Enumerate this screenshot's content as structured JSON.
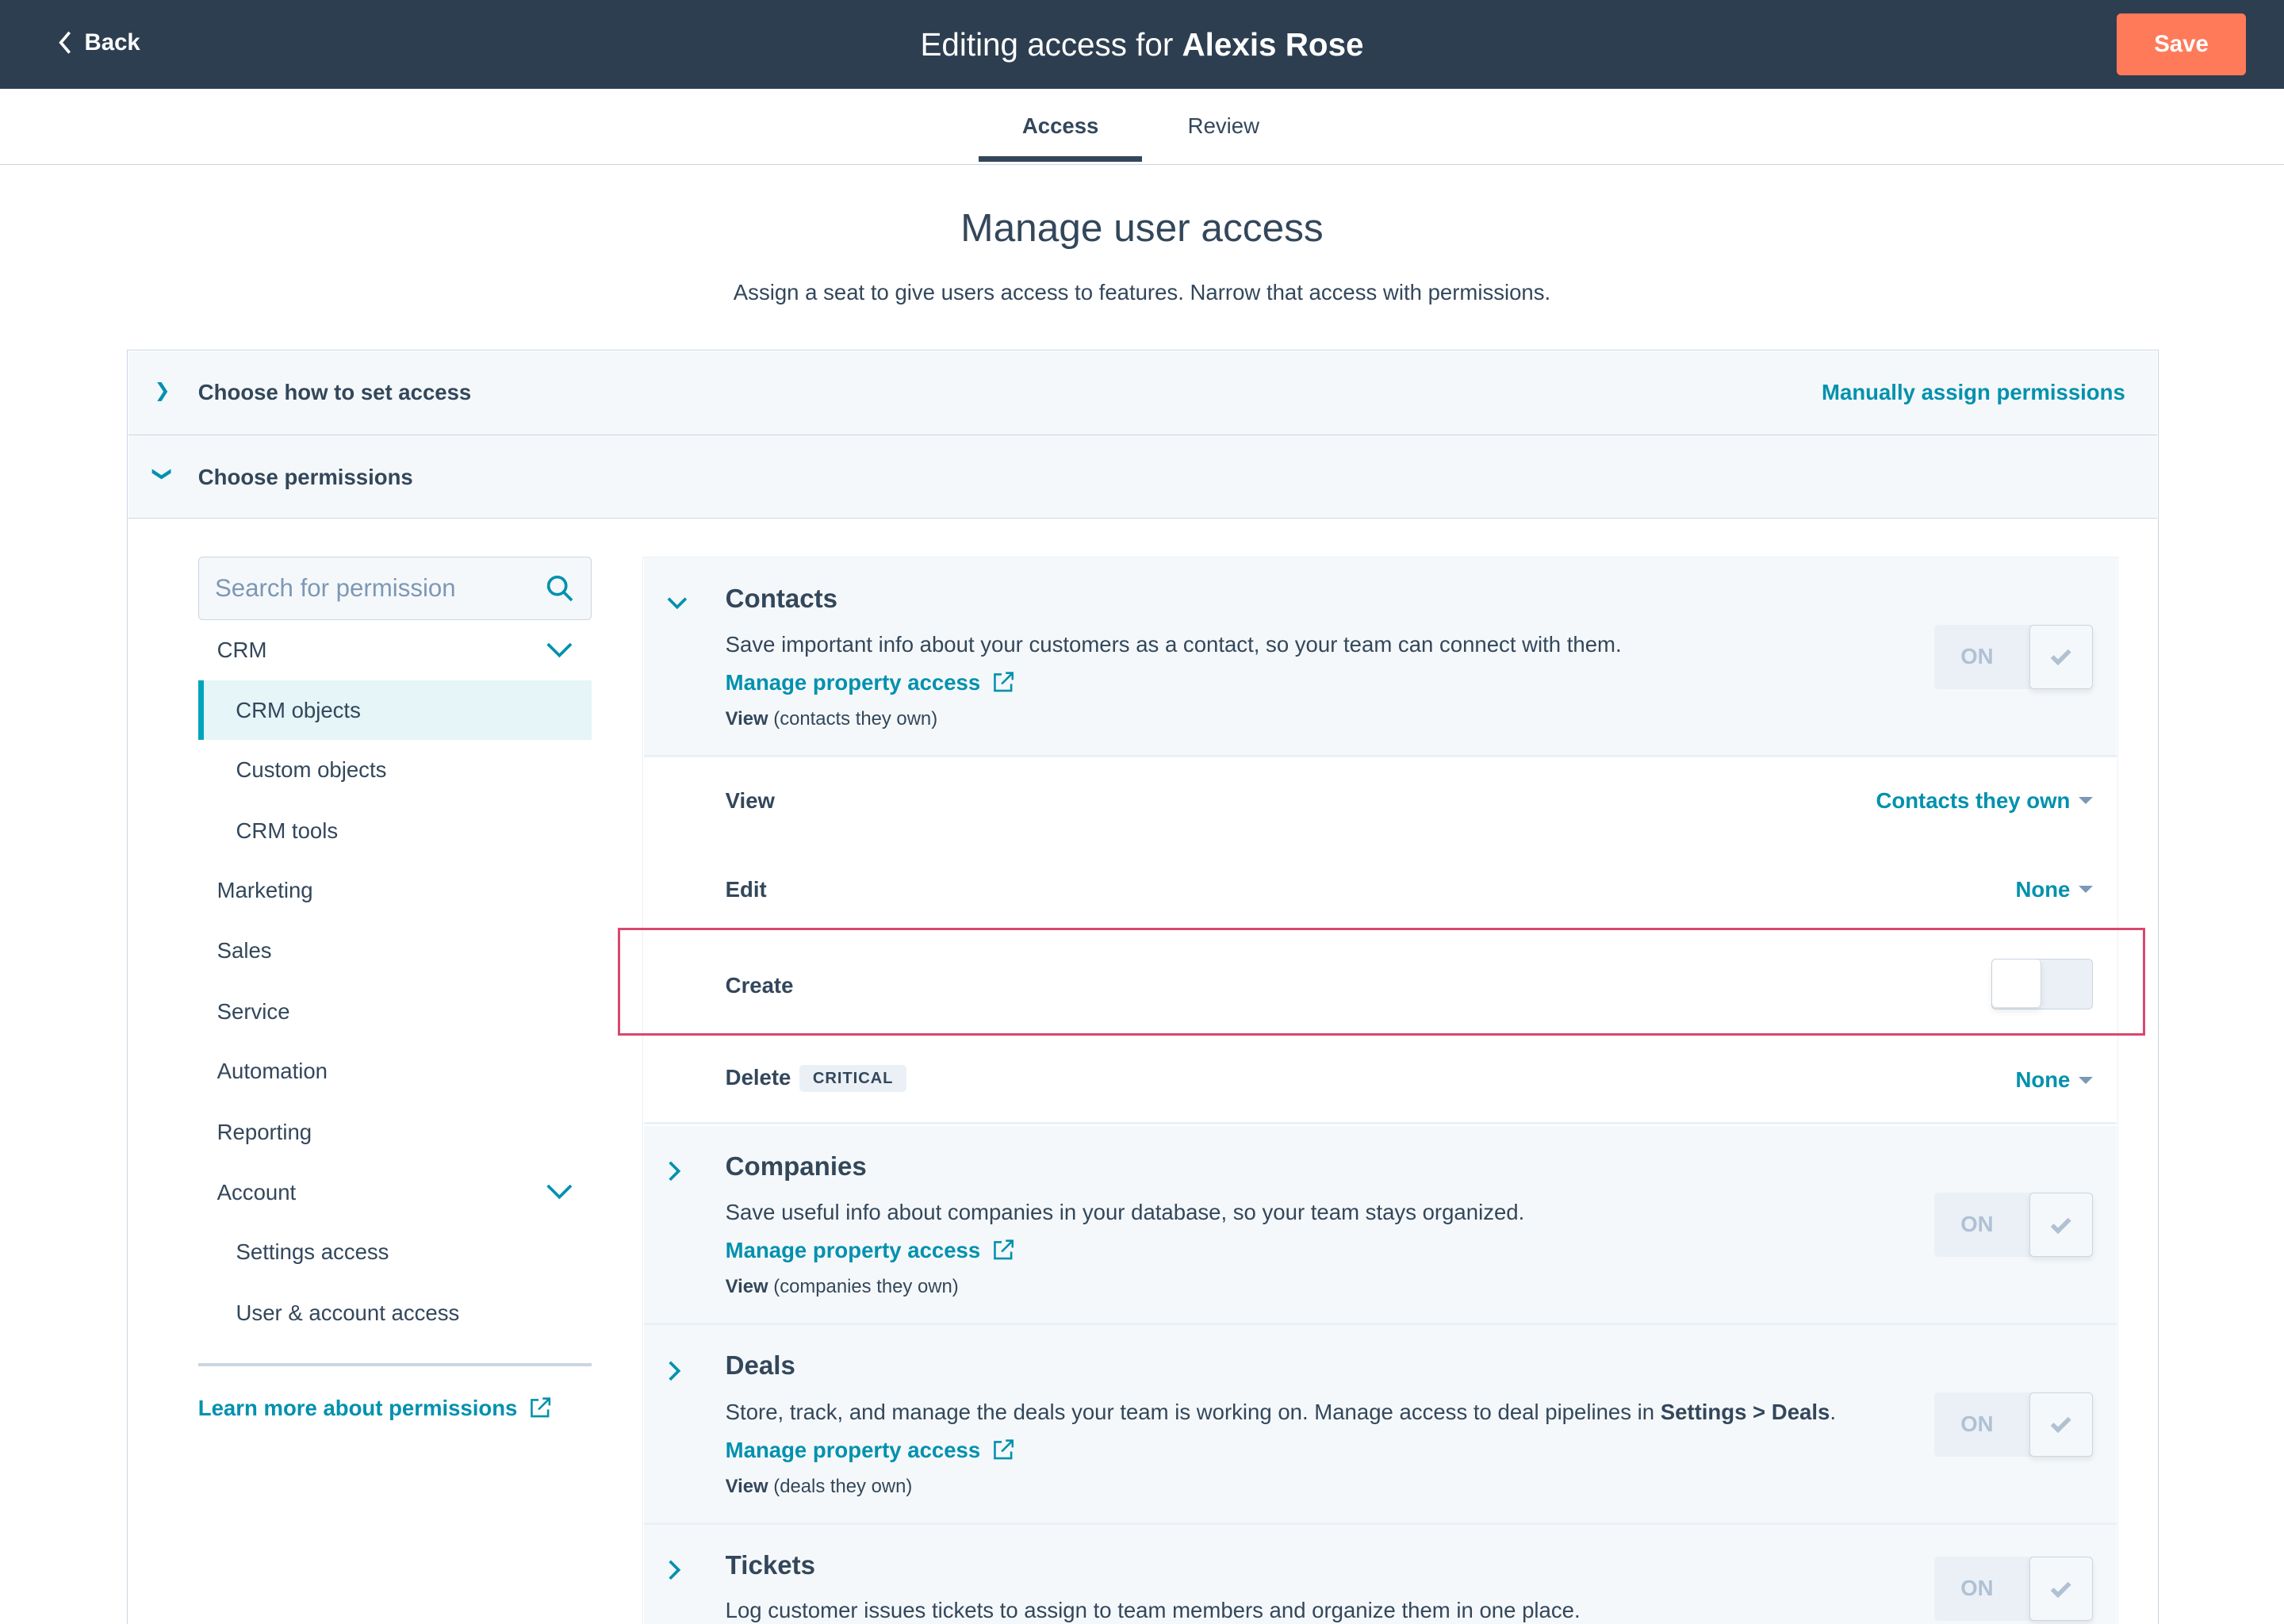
{
  "header": {
    "back_label": "Back",
    "title_prefix": "Editing access for",
    "user_name": "Alexis Rose",
    "save_label": "Save"
  },
  "tabs": [
    {
      "label": "Access",
      "active": true
    },
    {
      "label": "Review",
      "active": false
    }
  ],
  "page": {
    "title": "Manage user access",
    "subtitle": "Assign a seat to give users access to features. Narrow that access with permissions."
  },
  "accordion": {
    "how_label": "Choose how to set access",
    "how_value": "Manually assign permissions",
    "permissions_label": "Choose permissions"
  },
  "sidebar": {
    "search_placeholder": "Search for permission",
    "items": [
      {
        "label": "CRM",
        "expanded": true
      },
      {
        "label": "CRM objects",
        "selected": true
      },
      {
        "label": "Custom objects"
      },
      {
        "label": "CRM tools"
      },
      {
        "label": "Marketing"
      },
      {
        "label": "Sales"
      },
      {
        "label": "Service"
      },
      {
        "label": "Automation"
      },
      {
        "label": "Reporting"
      },
      {
        "label": "Account",
        "expanded": true
      },
      {
        "label": "Settings access"
      },
      {
        "label": "User & account access"
      }
    ],
    "learn_more": "Learn more about permissions"
  },
  "sections": [
    {
      "name": "Contacts",
      "expanded": true,
      "desc": "Save important info about your customers as a contact, so your team can connect with them.",
      "manage": "Manage property access",
      "view_label": "View",
      "view_scope": "(contacts they own)",
      "toggle": "ON"
    },
    {
      "name": "Companies",
      "desc": "Save useful info about companies in your database, so your team stays organized.",
      "manage": "Manage property access",
      "view_label": "View",
      "view_scope": "(companies they own)",
      "toggle": "ON"
    },
    {
      "name": "Deals",
      "desc": "Store, track, and manage the deals your team is working on. Manage access to deal pipelines in",
      "desc_bold": "Settings > Deals",
      "desc_end": ".",
      "manage": "Manage property access",
      "view_label": "View",
      "view_scope": "(deals they own)",
      "toggle": "ON"
    },
    {
      "name": "Tickets",
      "desc": "Log customer issues tickets to assign to team members and organize them in one place.",
      "toggle": "ON"
    }
  ],
  "contact_perms": {
    "view": {
      "label": "View",
      "value": "Contacts they own"
    },
    "edit": {
      "label": "Edit",
      "value": "None"
    },
    "create": {
      "label": "Create",
      "enabled": false
    },
    "delete": {
      "label": "Delete",
      "badge": "CRITICAL",
      "value": "None"
    }
  },
  "colors": {
    "header_bg": "#2d3e50",
    "accent": "#0091ae",
    "save": "#ff7a59",
    "highlight": "#d9486f"
  }
}
